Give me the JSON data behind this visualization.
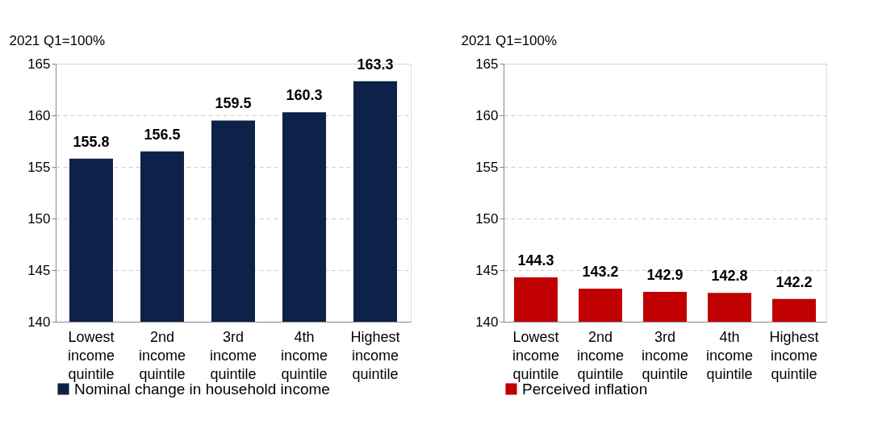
{
  "chart_data": [
    {
      "type": "bar",
      "ylabel": "2021 Q1=100%",
      "categories": [
        "Lowest income quintile",
        "2nd income quintile",
        "3rd income quintile",
        "4th income quintile",
        "Highest income quintile"
      ],
      "series": [
        {
          "name": "Nominal change in household income",
          "color": "#0e2149",
          "values": [
            155.8,
            156.5,
            159.5,
            160.3,
            163.3
          ]
        }
      ],
      "ylim": [
        140,
        165
      ],
      "yticks": [
        140,
        145,
        150,
        155,
        160,
        165
      ],
      "grid": "y",
      "legend": "bottom",
      "data_labels": true
    },
    {
      "type": "bar",
      "ylabel": "2021 Q1=100%",
      "categories": [
        "Lowest income quintile",
        "2nd income quintile",
        "3rd income quintile",
        "4th income quintile",
        "Highest income quintile"
      ],
      "series": [
        {
          "name": "Perceived inflation",
          "color": "#c00000",
          "values": [
            144.3,
            143.2,
            142.9,
            142.8,
            142.2
          ]
        }
      ],
      "ylim": [
        140,
        165
      ],
      "yticks": [
        140,
        145,
        150,
        155,
        160,
        165
      ],
      "grid": "y",
      "legend": "bottom",
      "data_labels": true
    }
  ]
}
